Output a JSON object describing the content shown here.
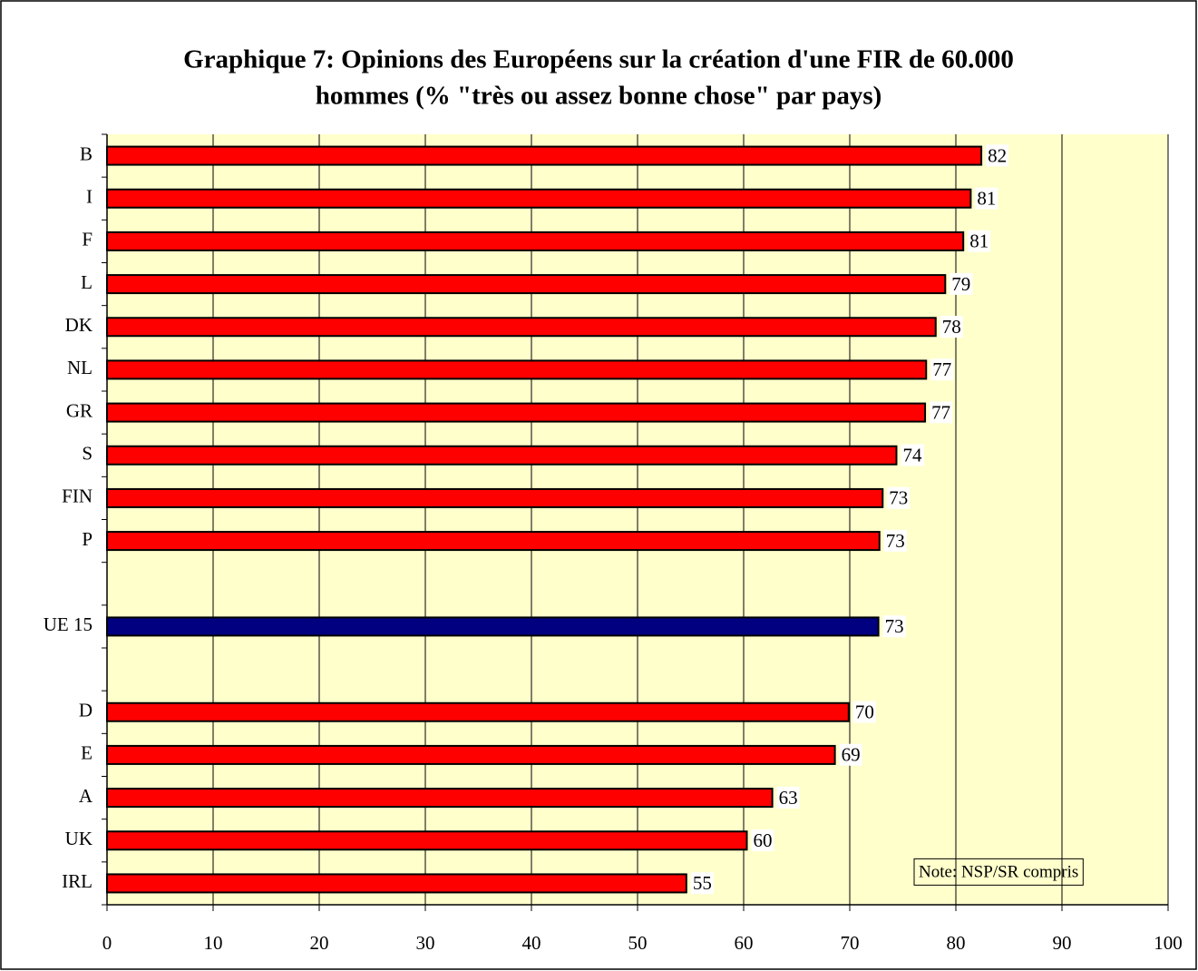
{
  "chart_data": {
    "type": "barh",
    "title": [
      "Graphique 7: Opinions des Européens sur la création d'une FIR de 60.000",
      "hommes (% \"très ou assez bonne chose\" par pays)"
    ],
    "categories": [
      "B",
      "I",
      "F",
      "L",
      "DK",
      "NL",
      "GR",
      "S",
      "FIN",
      "P",
      null,
      "UE 15",
      null,
      "D",
      "E",
      "A",
      "UK",
      "IRL"
    ],
    "values": [
      82.4,
      81.4,
      80.7,
      79.0,
      78.1,
      77.2,
      77.1,
      74.4,
      73.1,
      72.8,
      null,
      72.7,
      null,
      69.9,
      68.6,
      62.7,
      60.3,
      54.6
    ],
    "value_labels": [
      "82",
      "81",
      "81",
      "79",
      "78",
      "77",
      "77",
      "74",
      "73",
      "73",
      null,
      "73",
      null,
      "70",
      "69",
      "63",
      "60",
      "55"
    ],
    "colors": [
      "#ff0000",
      "#ff0000",
      "#ff0000",
      "#ff0000",
      "#ff0000",
      "#ff0000",
      "#ff0000",
      "#ff0000",
      "#ff0000",
      "#ff0000",
      null,
      "#000080",
      null,
      "#ff0000",
      "#ff0000",
      "#ff0000",
      "#ff0000",
      "#ff0000"
    ],
    "xlim": [
      0,
      100
    ],
    "xticks": [
      0,
      10,
      20,
      30,
      40,
      50,
      60,
      70,
      80,
      90,
      100
    ],
    "grid": true,
    "annotation": "Note: NSP/SR compris"
  }
}
